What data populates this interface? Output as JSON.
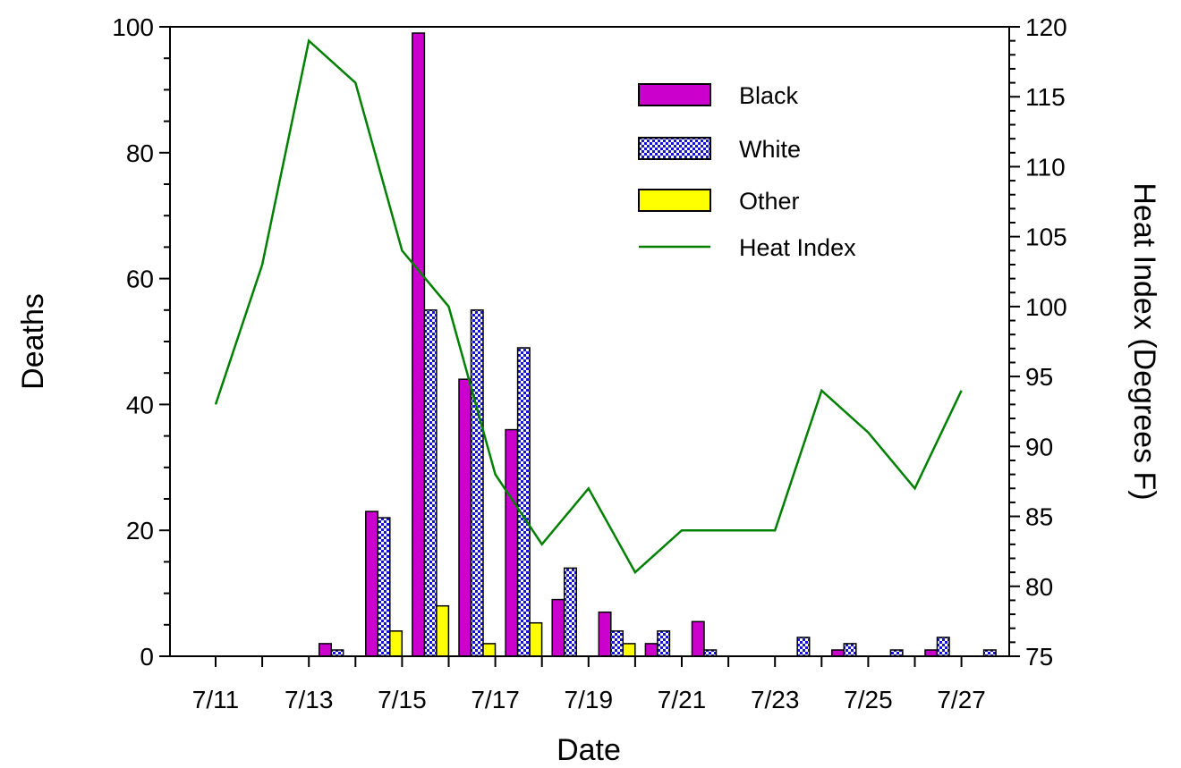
{
  "chart_data": {
    "type": "bar",
    "title": "",
    "xlabel": "Date",
    "ylabel": "Deaths",
    "y2label": "Heat Index (Degrees F)",
    "ylim": [
      0,
      100
    ],
    "y2lim": [
      75,
      120
    ],
    "yticks": [
      0,
      20,
      40,
      60,
      80,
      100
    ],
    "y2ticks": [
      75,
      80,
      85,
      90,
      95,
      100,
      105,
      110,
      115,
      120
    ],
    "categories": [
      "7/11",
      "7/12",
      "7/13",
      "7/14",
      "7/15",
      "7/16",
      "7/17",
      "7/18",
      "7/19",
      "7/20",
      "7/21",
      "7/22",
      "7/23",
      "7/24",
      "7/25",
      "7/26",
      "7/27"
    ],
    "xtick_labels": [
      "7/11",
      "7/13",
      "7/15",
      "7/17",
      "7/19",
      "7/21",
      "7/23",
      "7/25",
      "7/27"
    ],
    "series": [
      {
        "name": "Black",
        "kind": "bar",
        "color": "#cc00cc",
        "values": [
          0,
          0,
          2,
          23,
          99,
          44,
          36,
          9,
          7,
          2,
          5.5,
          0,
          0,
          1,
          0,
          1,
          0
        ]
      },
      {
        "name": "White",
        "kind": "bar",
        "color": "#1414d2",
        "pattern": "checker",
        "values": [
          0,
          0,
          1,
          22,
          55,
          55,
          49,
          14,
          4,
          4,
          1,
          0,
          3,
          2,
          1,
          3,
          1
        ]
      },
      {
        "name": "Other",
        "kind": "bar",
        "color": "#ffff00",
        "values": [
          0,
          0,
          0,
          4,
          8,
          2,
          5.3,
          0,
          2,
          0,
          0,
          0,
          0,
          0,
          0,
          0,
          0
        ]
      },
      {
        "name": "Heat Index",
        "kind": "line",
        "axis": "right",
        "color": "#008000",
        "values": [
          93,
          103,
          119,
          116,
          104,
          100,
          88,
          83,
          87,
          81,
          84,
          84,
          84,
          94,
          91,
          87,
          94
        ]
      }
    ],
    "grid": false,
    "legend_position": "top-right"
  }
}
